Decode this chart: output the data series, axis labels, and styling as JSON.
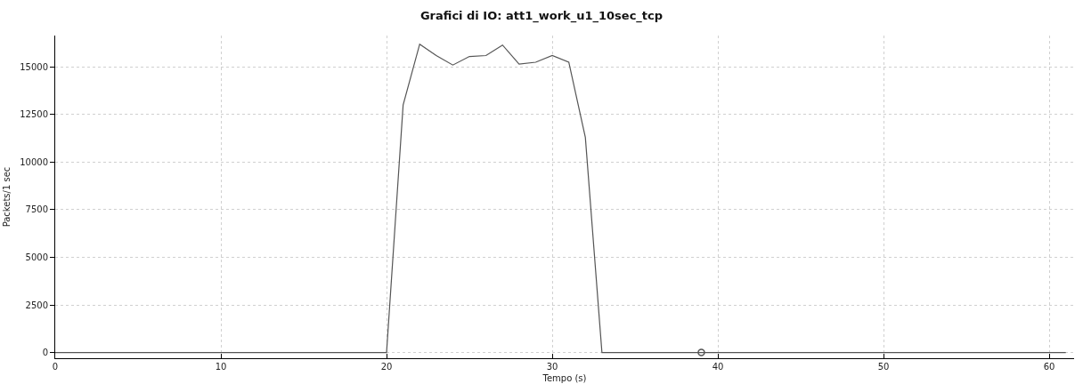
{
  "chart_data": {
    "type": "line",
    "title": "Grafici di IO: att1_work_u1_10sec_tcp",
    "xlabel": "Tempo (s)",
    "ylabel": "Packets/1 sec",
    "x": [
      0,
      20,
      21,
      22,
      23,
      24,
      25,
      26,
      27,
      28,
      29,
      30,
      31,
      32,
      33,
      61
    ],
    "series": [
      {
        "color": "#555555",
        "values": [
          0,
          0,
          13000,
          16200,
          15600,
          15100,
          15550,
          15600,
          16150,
          15150,
          15250,
          15600,
          15250,
          11300,
          0,
          0
        ]
      },
      {
        "type": "scatter",
        "marker": "circle",
        "color": "#555555",
        "x": [
          39
        ],
        "values": [
          0
        ]
      }
    ],
    "xlim": [
      0,
      61.5
    ],
    "ylim": [
      -300,
      16650
    ],
    "xticks": [
      0,
      10,
      20,
      30,
      40,
      50,
      60
    ],
    "yticks": [
      0,
      2500,
      5000,
      7500,
      10000,
      12500,
      15000
    ],
    "grid": true,
    "marker": "none",
    "line_style": "solid"
  }
}
